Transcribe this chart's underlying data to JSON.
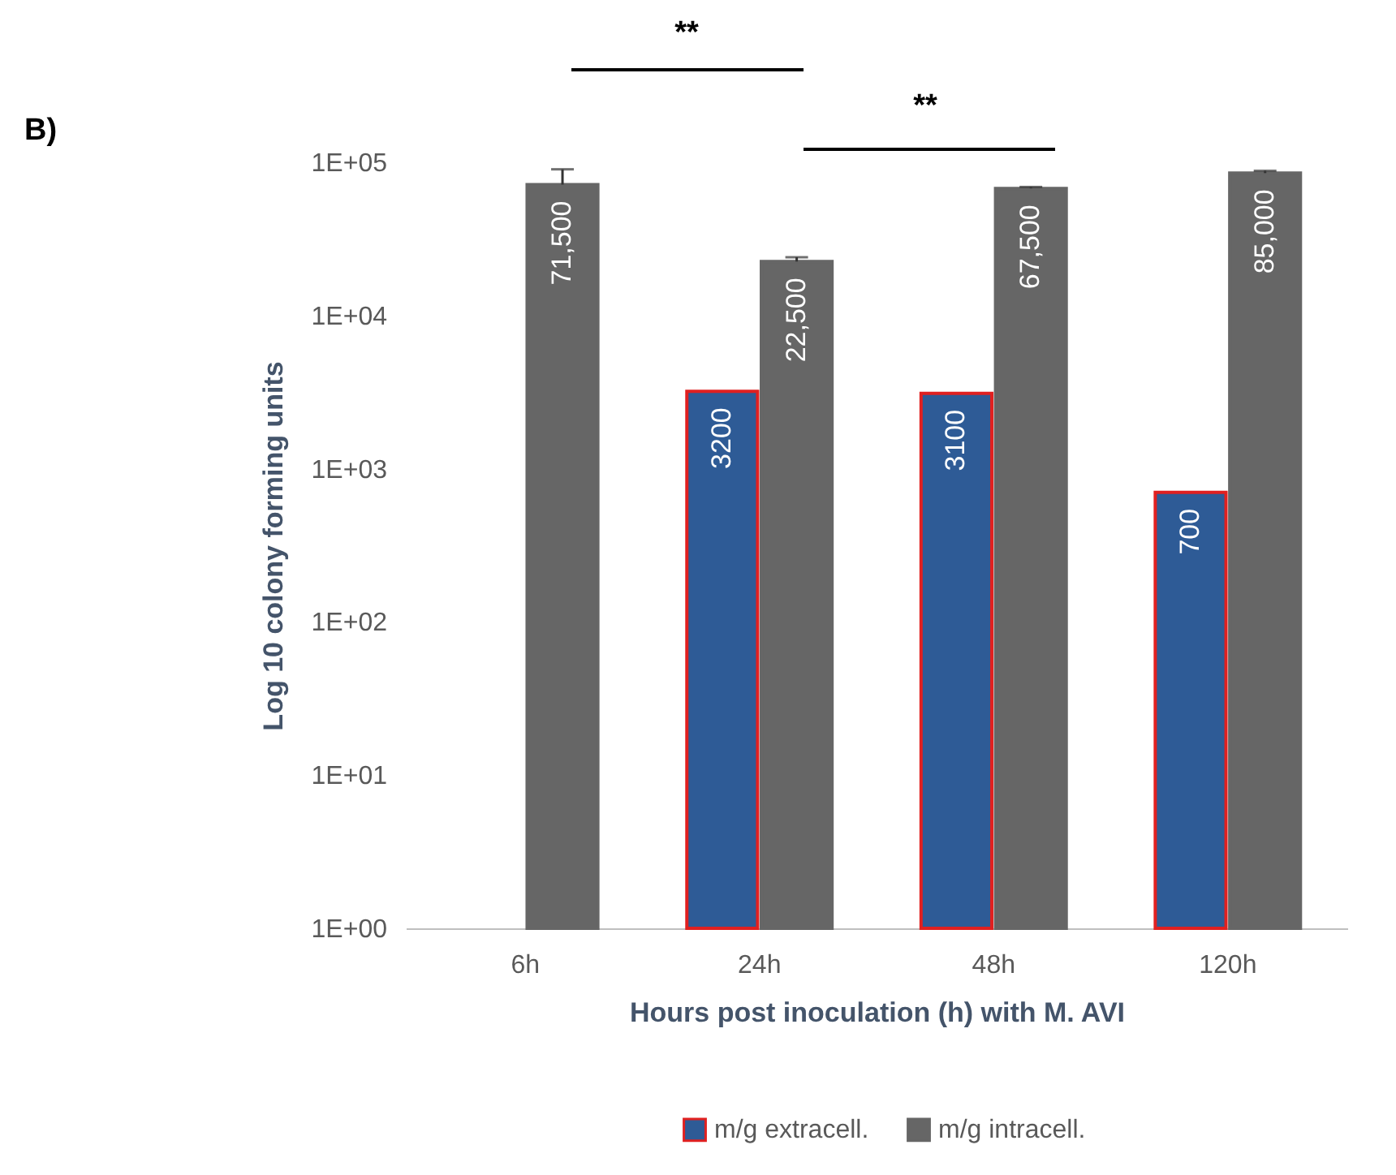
{
  "chart_data": {
    "type": "bar",
    "xlabel": "Hours post inoculation (h) with M. AVI",
    "ylabel": "Log 10 colony forming units",
    "categories": [
      "6h",
      "24h",
      "48h",
      "120h"
    ],
    "series": [
      {
        "name": "m/g extracell.",
        "color": "#2e5b96",
        "values": [
          null,
          3200,
          3100,
          700
        ],
        "value_labels": [
          null,
          "3200",
          "3100",
          "700"
        ]
      },
      {
        "name": "m/g intracell.",
        "color": "#666666",
        "values": [
          71500,
          22500,
          67500,
          85000
        ],
        "value_labels": [
          "71,500",
          "22,500",
          "67,500",
          "85,000"
        ],
        "errors": [
          [
            71500,
            90000
          ],
          [
            22500,
            24000
          ],
          [
            67500,
            69000
          ],
          [
            85000,
            88000
          ]
        ]
      }
    ],
    "log": "y",
    "ylim": [
      1,
      100000
    ],
    "yticks": [
      {
        "value": 1,
        "label": "1E+00"
      },
      {
        "value": 10,
        "label": "1E+01"
      },
      {
        "value": 100,
        "label": "1E+02"
      },
      {
        "value": 1000,
        "label": "1E+03"
      },
      {
        "value": 10000,
        "label": "1E+04"
      },
      {
        "value": 100000,
        "label": "1E+05"
      }
    ],
    "grid": false,
    "legend": "bottom",
    "annotations": [
      "B)",
      "**",
      "**"
    ]
  }
}
